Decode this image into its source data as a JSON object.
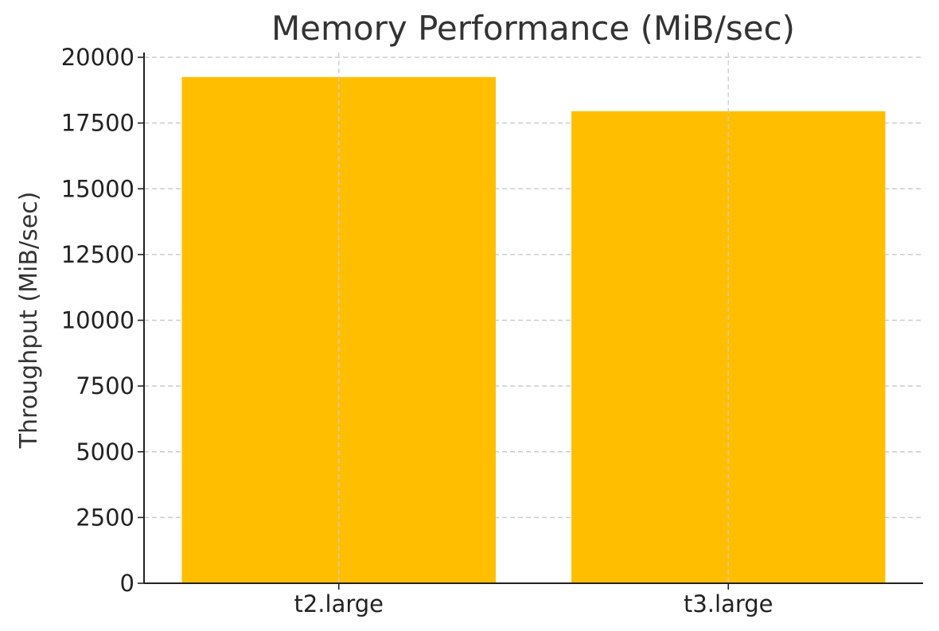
{
  "chart_data": {
    "type": "bar",
    "title": "Memory Performance (MiB/sec)",
    "xlabel": "",
    "ylabel": "Throughput (MiB/sec)",
    "categories": [
      "t2.large",
      "t3.large"
    ],
    "values": [
      19250,
      17950
    ],
    "ylim": [
      0,
      20000
    ],
    "yticks": [
      0,
      2500,
      5000,
      7500,
      10000,
      12500,
      15000,
      17500,
      20000
    ],
    "bar_color": "#FFBF00",
    "grid": true,
    "legend": "none"
  }
}
